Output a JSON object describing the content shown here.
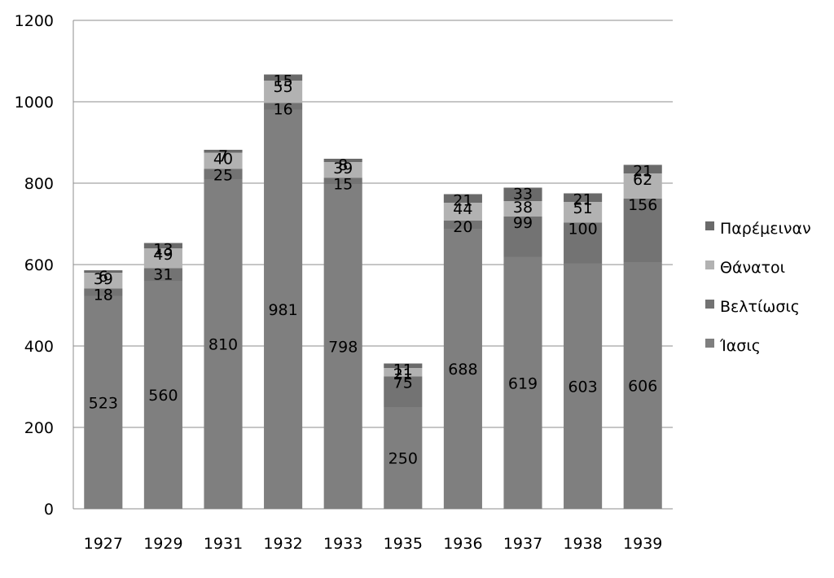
{
  "chart_data": {
    "type": "bar",
    "stacked": true,
    "categories": [
      "1927",
      "1929",
      "1931",
      "1932",
      "1933",
      "1935",
      "1936",
      "1937",
      "1938",
      "1939"
    ],
    "series": [
      {
        "name": "Ίασις",
        "values": [
          523,
          560,
          810,
          981,
          798,
          250,
          688,
          619,
          603,
          606
        ],
        "color": "#7f7f7f"
      },
      {
        "name": "Βελτίωσις",
        "values": [
          18,
          31,
          25,
          16,
          15,
          75,
          20,
          99,
          100,
          156
        ],
        "color": "#737373"
      },
      {
        "name": "Θάνατοι",
        "values": [
          39,
          49,
          40,
          55,
          39,
          21,
          44,
          38,
          51,
          62
        ],
        "color": "#b2b2b2"
      },
      {
        "name": "Παρέμειναν",
        "values": [
          6,
          13,
          7,
          15,
          8,
          11,
          21,
          33,
          21,
          21
        ],
        "color": "#6a6a6a"
      }
    ],
    "ylim": [
      0,
      1200
    ],
    "yticks": [
      "0",
      "200",
      "400",
      "600",
      "800",
      "1000",
      "1200"
    ],
    "grid": true,
    "legend_position": "right",
    "title": "",
    "xlabel": "",
    "ylabel": ""
  }
}
